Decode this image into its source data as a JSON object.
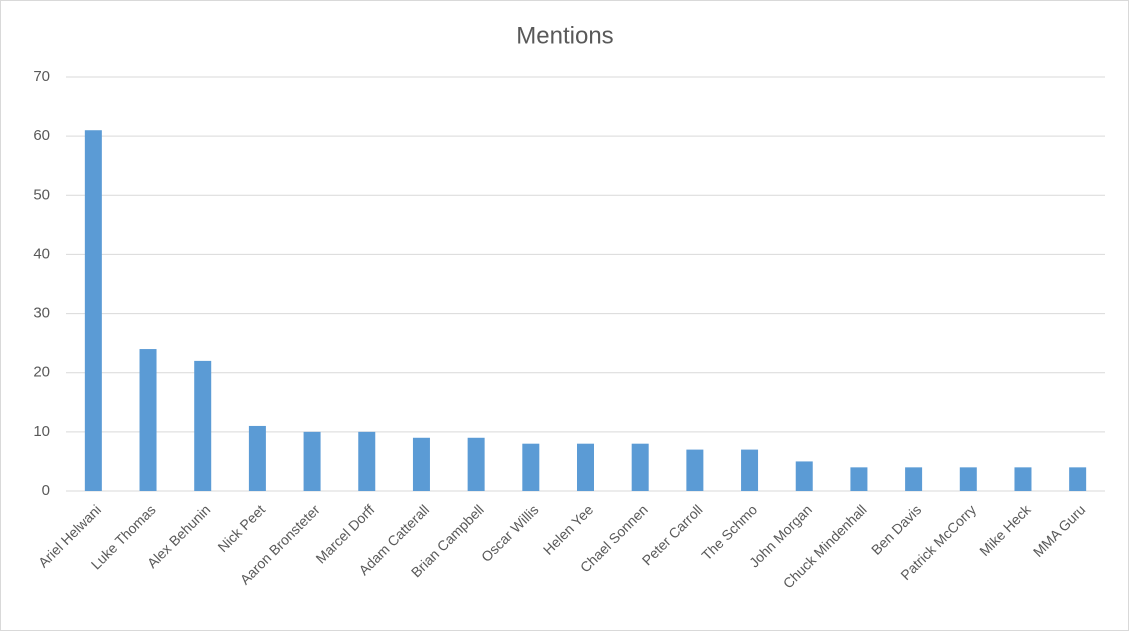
{
  "chart_data": {
    "type": "bar",
    "title": "Mentions",
    "categories": [
      "Ariel Helwani",
      "Luke Thomas",
      "Alex Behunin",
      "Nick Peet",
      "Aaron Bronsteter",
      "Marcel Dorff",
      "Adam Catterall",
      "Brian Campbell",
      "Oscar Willis",
      "Helen Yee",
      "Chael Sonnen",
      "Peter Carroll",
      "The Schmo",
      "John Morgan",
      "Chuck Mindenhall",
      "Ben Davis",
      "Patrick McCorry",
      "Mike Heck",
      "MMA Guru"
    ],
    "values": [
      61,
      24,
      22,
      11,
      10,
      10,
      9,
      9,
      8,
      8,
      8,
      7,
      7,
      5,
      4,
      4,
      4,
      4,
      4
    ],
    "color": "#5b9bd5",
    "ylim": [
      0,
      70
    ],
    "yticks": [
      0,
      10,
      20,
      30,
      40,
      50,
      60,
      70
    ],
    "grid": true
  }
}
